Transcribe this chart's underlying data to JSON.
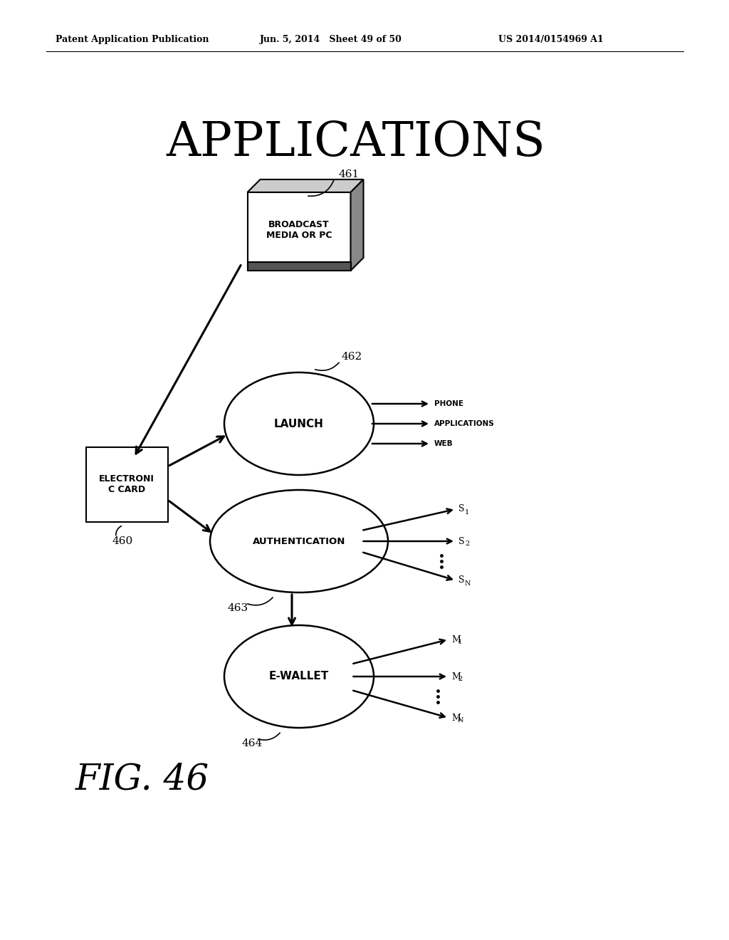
{
  "bg_color": "#ffffff",
  "header_left": "Patent Application Publication",
  "header_mid": "Jun. 5, 2014   Sheet 49 of 50",
  "header_right": "US 2014/0154969 A1",
  "title": "APPLICATIONS",
  "fig_label": "FIG. 46",
  "box_461_label": "BROADCAST\nMEDIA OR PC",
  "box_461_num": "461",
  "box_460_label": "ELECTRONI\nC CARD",
  "box_460_num": "460",
  "ellipse_462_label": "LAUNCH",
  "ellipse_462_num": "462",
  "ellipse_463_label": "AUTHENTICATION",
  "ellipse_463_num": "463",
  "ellipse_464_label": "E-WALLET",
  "ellipse_464_num": "464",
  "launch_outputs": [
    "PHONE",
    "APPLICATIONS",
    "WEB"
  ],
  "auth_outputs_labels": [
    "S",
    "S",
    "S"
  ],
  "auth_outputs_subs": [
    "1",
    "2",
    "N"
  ],
  "wallet_outputs_labels": [
    "M",
    "M",
    "M"
  ],
  "wallet_outputs_subs": [
    "1",
    "2",
    "N"
  ]
}
